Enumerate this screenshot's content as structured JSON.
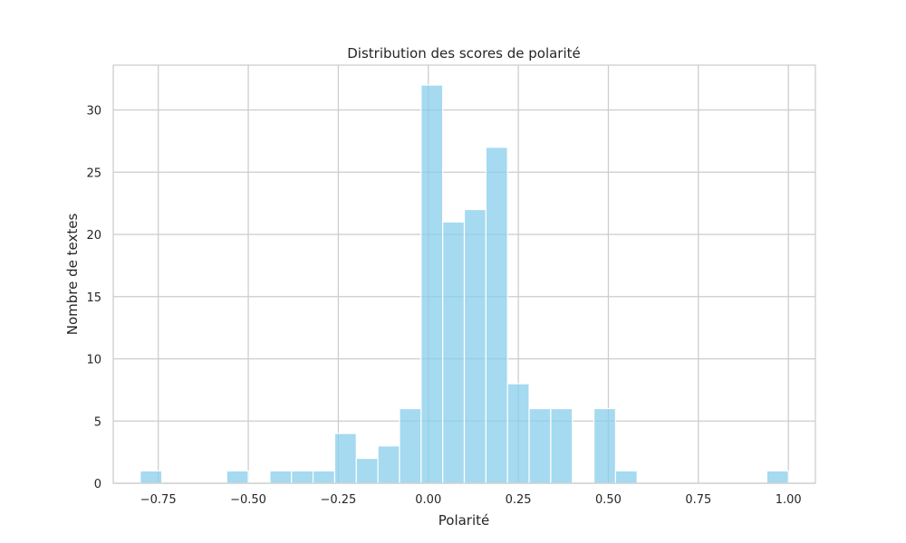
{
  "chart_data": {
    "type": "bar",
    "title": "Distribution des scores de polarité",
    "xlabel": "Polarité",
    "ylabel": "Nombre de textes",
    "xlim": [
      -0.875,
      1.075
    ],
    "ylim": [
      0,
      33.6
    ],
    "xticks": [
      -0.75,
      -0.5,
      -0.25,
      0.0,
      0.25,
      0.5,
      0.75,
      1.0
    ],
    "xtick_labels": [
      "−0.75",
      "−0.50",
      "−0.25",
      "0.00",
      "0.25",
      "0.50",
      "0.75",
      "1.00"
    ],
    "yticks": [
      0,
      5,
      10,
      15,
      20,
      25,
      30
    ],
    "ytick_labels": [
      "0",
      "5",
      "10",
      "15",
      "20",
      "25",
      "30"
    ],
    "bin_edges": [
      -0.8,
      -0.74,
      -0.68,
      -0.62,
      -0.56,
      -0.5,
      -0.44,
      -0.38,
      -0.32,
      -0.26,
      -0.2,
      -0.14,
      -0.08,
      -0.02,
      0.04,
      0.1,
      0.16,
      0.22,
      0.28,
      0.34,
      0.4,
      0.46,
      0.52,
      0.58,
      0.64,
      0.7,
      0.76,
      0.82,
      0.88,
      0.94,
      1.0
    ],
    "counts": [
      1,
      0,
      0,
      0,
      1,
      0,
      1,
      1,
      1,
      4,
      2,
      3,
      6,
      32,
      21,
      22,
      27,
      8,
      6,
      6,
      0,
      6,
      1,
      0,
      0,
      0,
      0,
      0,
      0,
      1
    ],
    "grid": true,
    "bar_color": "#87ceeb"
  }
}
